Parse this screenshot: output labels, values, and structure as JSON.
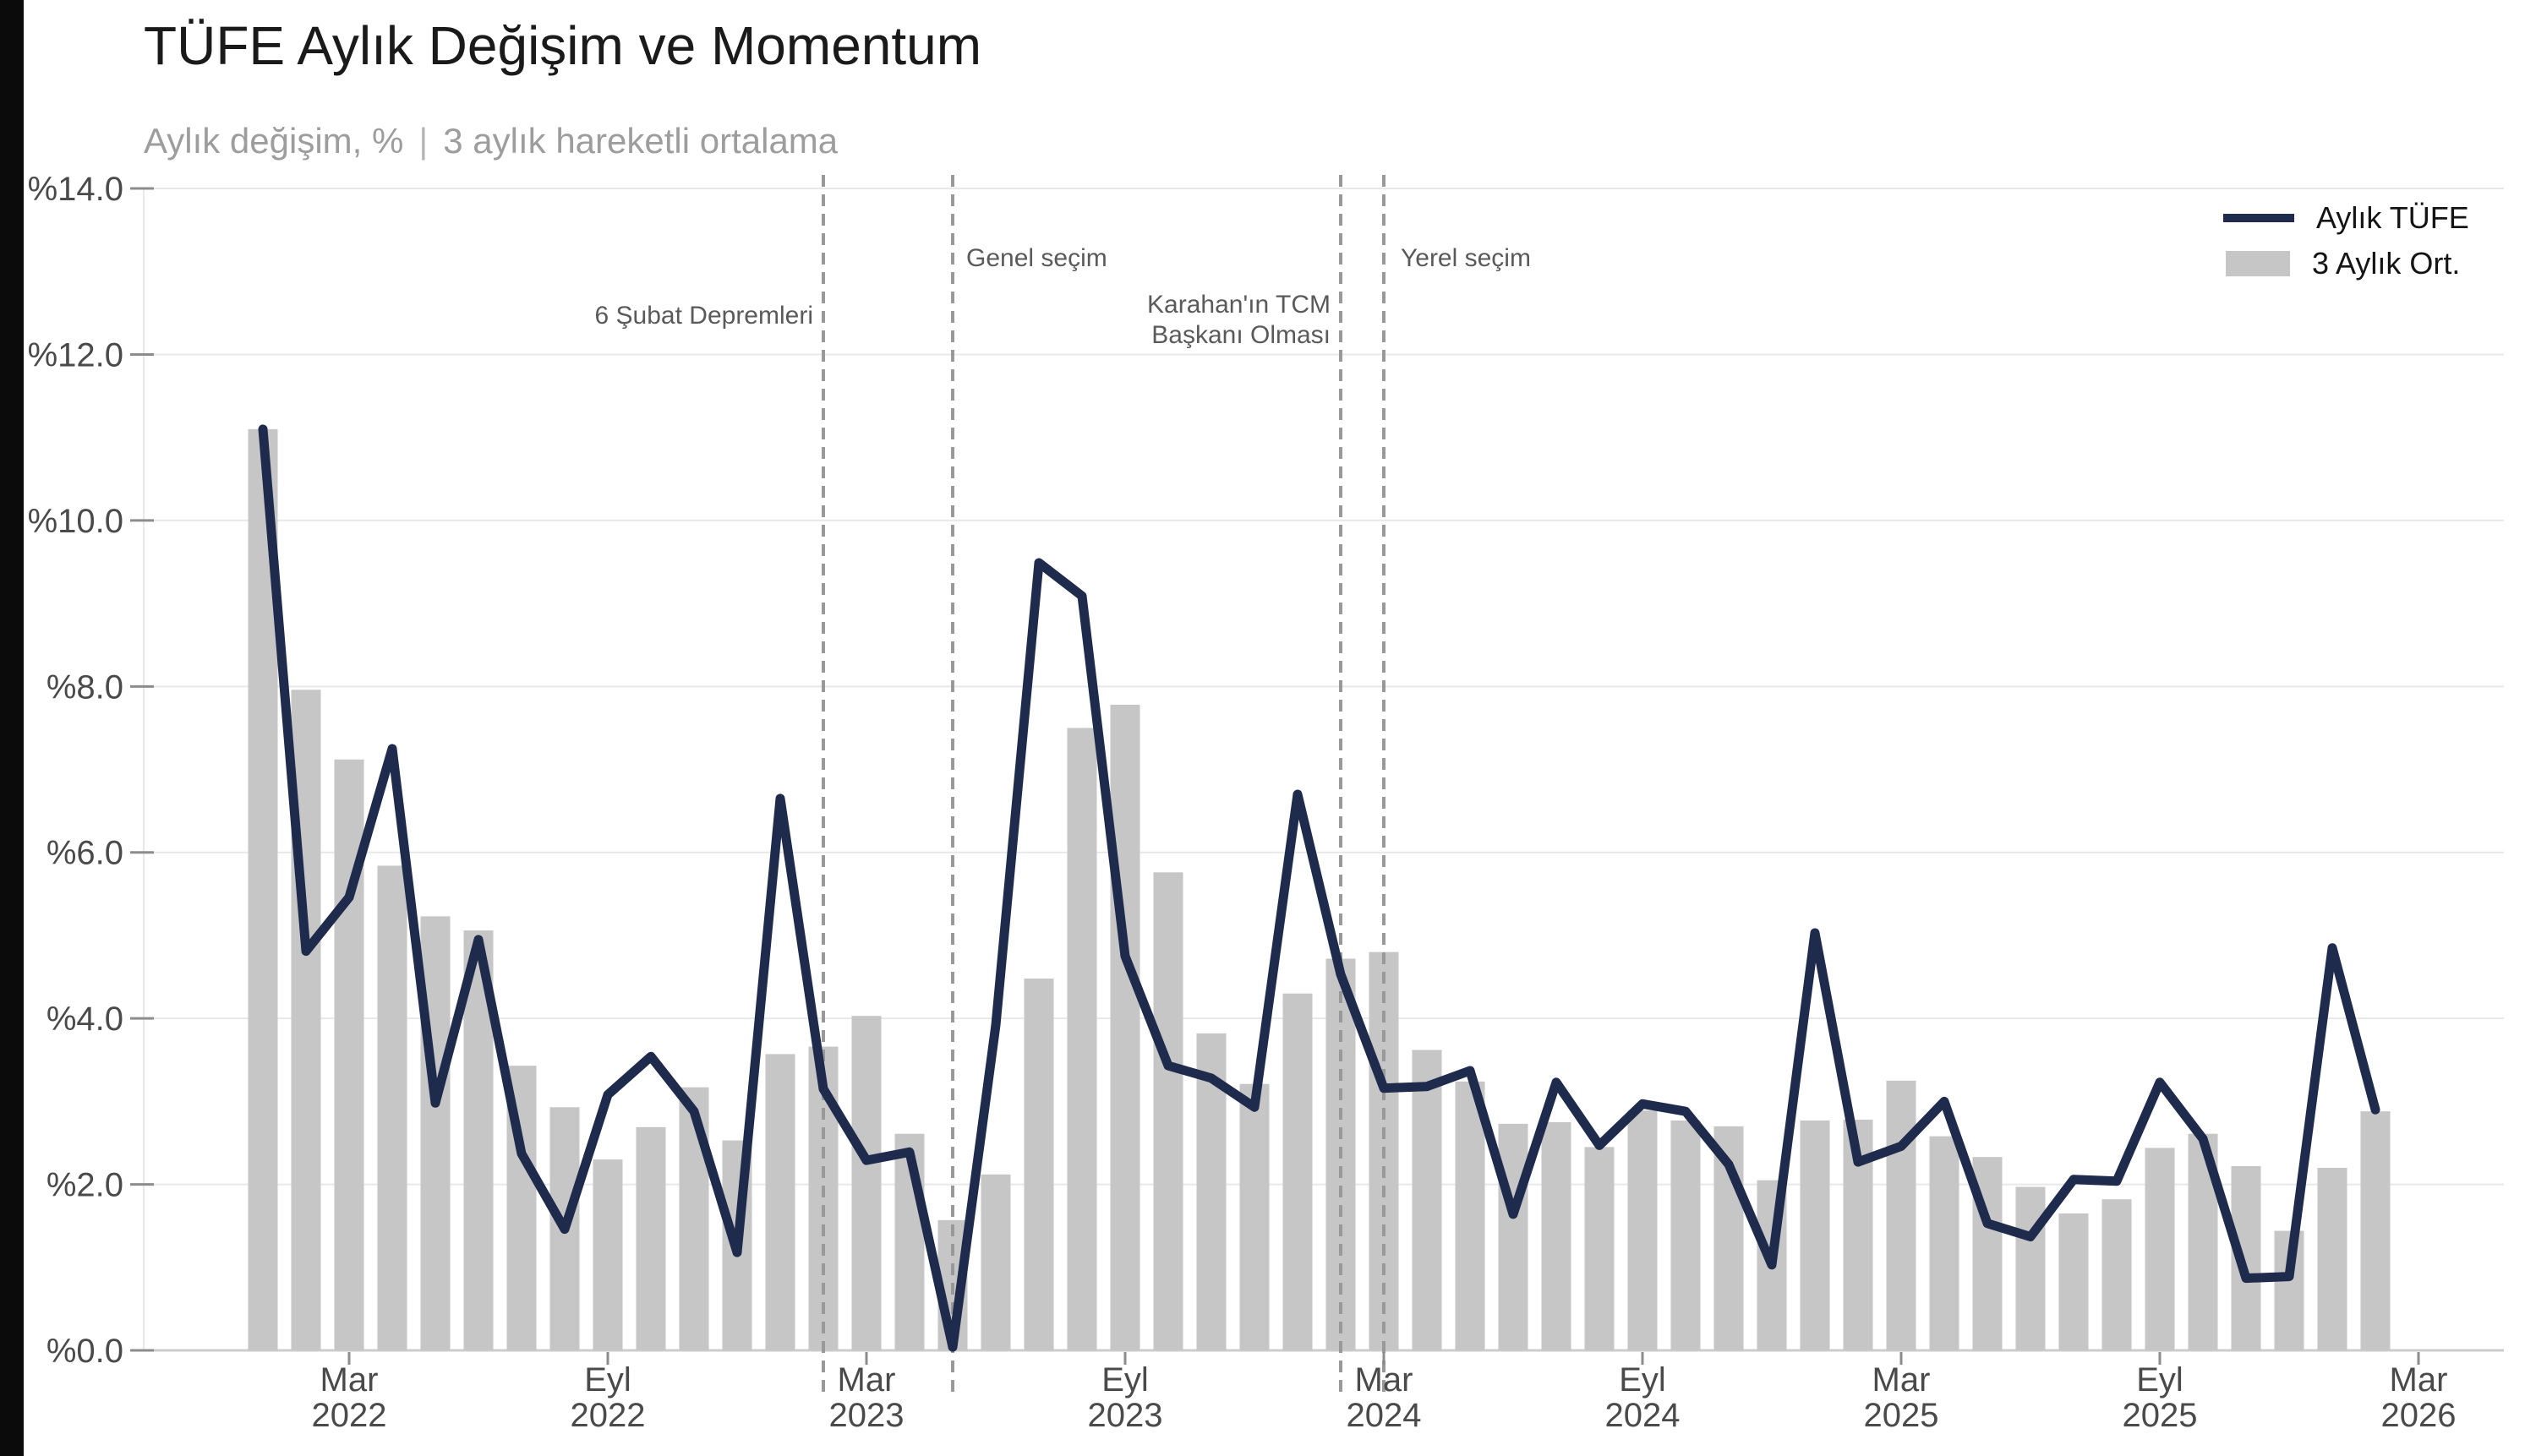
{
  "page": {
    "background": "#ffffff",
    "left_strip_color": "#0b0b0b"
  },
  "header": {
    "title": "TÜFE Aylık Değişim ve Momentum",
    "subtitle_left": "Aylık değişim, %",
    "subtitle_separator": "|",
    "subtitle_right": "3 aylık hareketli ortalama"
  },
  "legend": {
    "items": [
      {
        "label": "Aylık TÜFE",
        "swatch": "line",
        "color": "#1f2b4d"
      },
      {
        "label": "3 Aylık Ort.",
        "swatch": "bar",
        "color": "#c6c6c6"
      }
    ]
  },
  "chart_data": {
    "type": "combo-line-bar",
    "title": "TÜFE Aylık Değişim ve Momentum",
    "subtitle": "Aylık değişim, % | 3 aylık hareketli ortalama",
    "unit": "%",
    "ylim": [
      0,
      14
    ],
    "grid": "horizontal",
    "legend_position": "top-right",
    "y_ticks": [
      0,
      2,
      4,
      6,
      8,
      10,
      12,
      14
    ],
    "y_tick_labels": [
      "%0.0",
      "%2.0",
      "%4.0",
      "%6.0",
      "%8.0",
      "%10.0",
      "%12.0",
      "%14.0"
    ],
    "months": [
      "2022-01",
      "2022-02",
      "2022-03",
      "2022-04",
      "2022-05",
      "2022-06",
      "2022-07",
      "2022-08",
      "2022-09",
      "2022-10",
      "2022-11",
      "2022-12",
      "2023-01",
      "2023-02",
      "2023-03",
      "2023-04",
      "2023-05",
      "2023-06",
      "2023-07",
      "2023-08",
      "2023-09",
      "2023-10",
      "2023-11",
      "2023-12",
      "2024-01",
      "2024-02",
      "2024-03",
      "2024-04",
      "2024-05",
      "2024-06",
      "2024-07",
      "2024-08",
      "2024-09",
      "2024-10",
      "2024-11",
      "2024-12",
      "2025-01",
      "2025-02",
      "2025-03",
      "2025-04",
      "2025-05",
      "2025-06",
      "2025-07",
      "2025-08",
      "2025-09",
      "2025-10",
      "2025-11",
      "2025-12",
      "2026-01",
      "2026-02"
    ],
    "series": [
      {
        "name": "Aylık TÜFE",
        "type": "line",
        "color": "#1f2b4d",
        "values": [
          11.1,
          4.81,
          5.46,
          7.25,
          2.98,
          4.95,
          2.37,
          1.46,
          3.08,
          3.54,
          2.88,
          1.18,
          6.65,
          3.15,
          2.29,
          2.39,
          0.04,
          3.92,
          9.49,
          9.09,
          4.75,
          3.43,
          3.28,
          2.93,
          6.7,
          4.53,
          3.16,
          3.18,
          3.37,
          1.64,
          3.23,
          2.47,
          2.97,
          2.88,
          2.24,
          1.03,
          5.03,
          2.27,
          2.46,
          3.0,
          1.53,
          1.37,
          2.06,
          2.04,
          3.23,
          2.55,
          0.87,
          0.89,
          4.85,
          2.9
        ]
      },
      {
        "name": "3 Aylık Ort.",
        "type": "bar",
        "color": "#c6c6c6",
        "values": [
          11.1,
          7.96,
          7.12,
          5.84,
          5.23,
          5.06,
          3.43,
          2.93,
          2.3,
          2.69,
          3.17,
          2.53,
          3.57,
          3.66,
          4.03,
          2.61,
          1.57,
          2.12,
          4.48,
          7.5,
          7.78,
          5.76,
          3.82,
          3.21,
          4.3,
          4.72,
          4.8,
          3.62,
          3.24,
          2.73,
          2.75,
          2.45,
          2.89,
          2.77,
          2.7,
          2.05,
          2.77,
          2.78,
          3.25,
          2.58,
          2.33,
          1.97,
          1.65,
          1.82,
          2.44,
          2.61,
          2.22,
          1.44,
          2.2,
          2.88
        ]
      }
    ],
    "x_ticks": [
      {
        "index": 2,
        "line1": "Mar",
        "line2": "2022"
      },
      {
        "index": 8,
        "line1": "Eyl",
        "line2": "2022"
      },
      {
        "index": 14,
        "line1": "Mar",
        "line2": "2023"
      },
      {
        "index": 20,
        "line1": "Eyl",
        "line2": "2023"
      },
      {
        "index": 26,
        "line1": "Mar",
        "line2": "2024"
      },
      {
        "index": 32,
        "line1": "Eyl",
        "line2": "2024"
      },
      {
        "index": 38,
        "line1": "Mar",
        "line2": "2025"
      },
      {
        "index": 44,
        "line1": "Eyl",
        "line2": "2025"
      },
      {
        "index": 50,
        "line1": "Mar",
        "line2": "2026"
      }
    ],
    "annotations": [
      {
        "lines": [
          "6 Şubat Depremleri"
        ],
        "month": "2023-02",
        "index": 13
      },
      {
        "lines": [
          "Genel seçim"
        ],
        "month": "2023-05",
        "index": 16
      },
      {
        "lines": [
          "Karahan'ın TCM",
          "Başkanı Olması"
        ],
        "month": "2024-02",
        "index": 25
      },
      {
        "lines": [
          "Yerel seçim"
        ],
        "month": "2024-03",
        "index": 26
      }
    ],
    "colors": {
      "gridline": "#e8e8e8",
      "baseline": "#cccccc",
      "dashed_event_line": "#999999",
      "tick_mark": "#8c8c8c",
      "tick_text": "#4a4a4a",
      "annotation_text": "#5a5a5a"
    }
  }
}
